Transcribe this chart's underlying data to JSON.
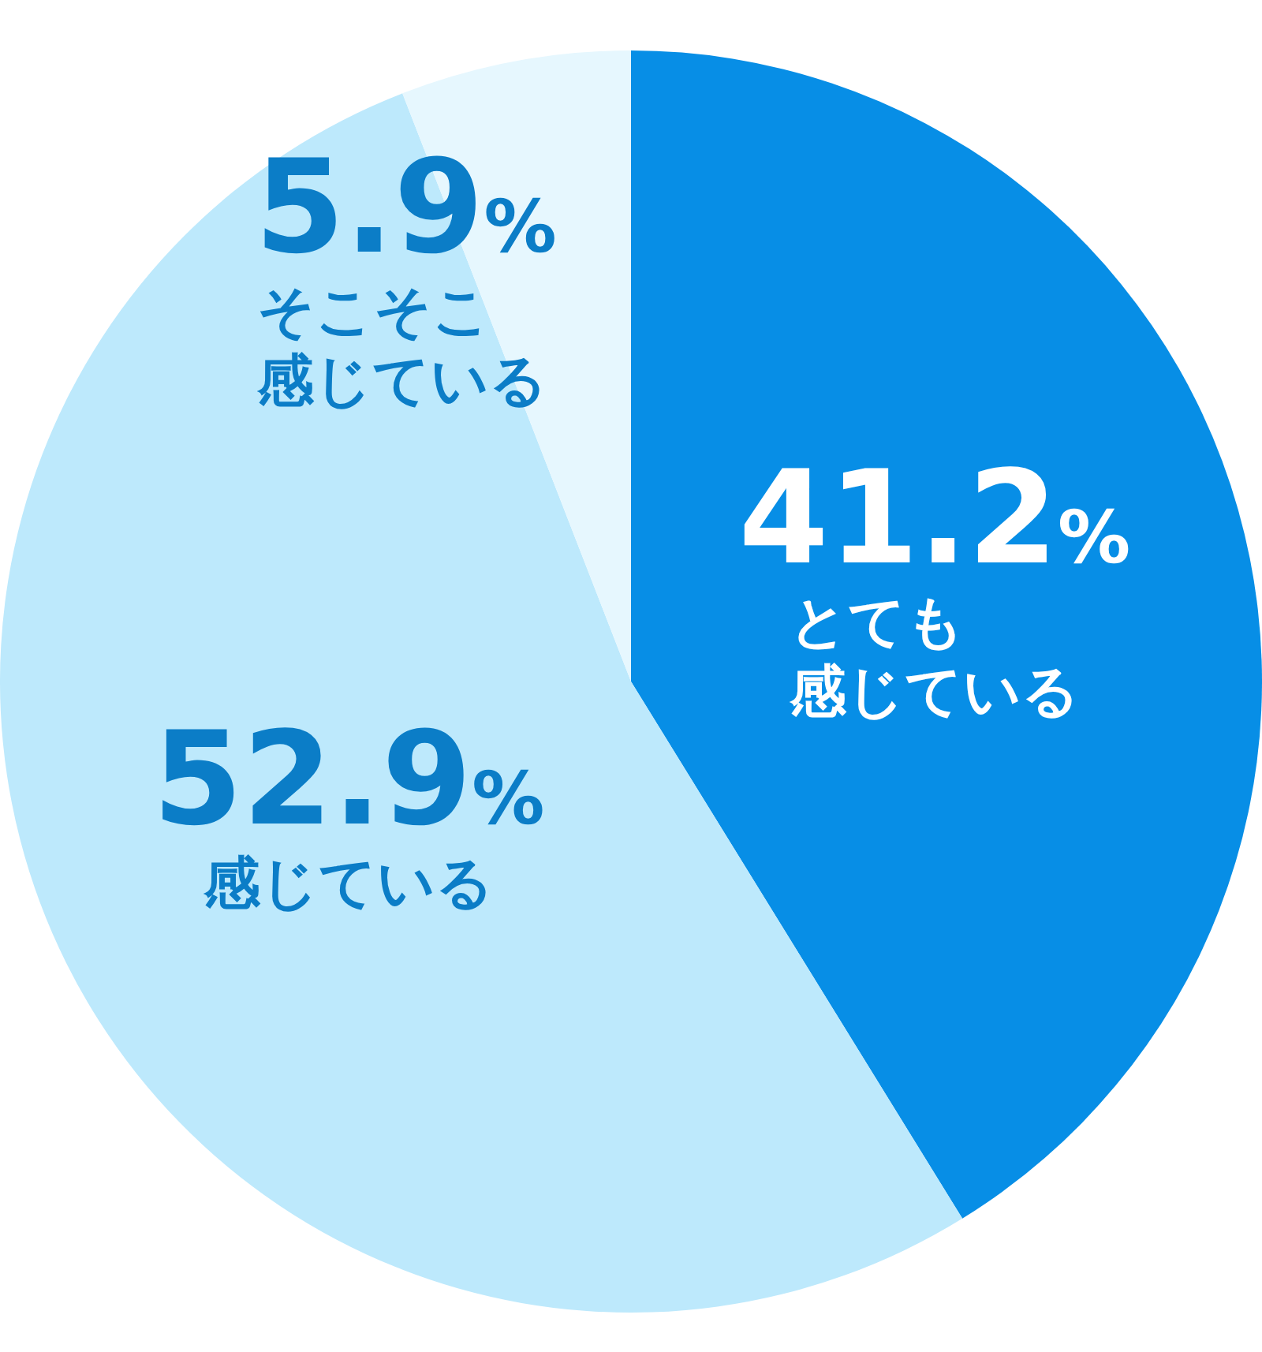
{
  "chart_data": {
    "type": "pie",
    "categories": [
      "とても感じている",
      "感じている",
      "そこそこ感じている"
    ],
    "values": [
      41.2,
      52.9,
      5.9
    ],
    "colors": [
      "#078ee6",
      "#bde9fc",
      "#e6f7fe"
    ],
    "value_labels": [
      "41.2%",
      "52.9%",
      "5.9%"
    ]
  }
}
